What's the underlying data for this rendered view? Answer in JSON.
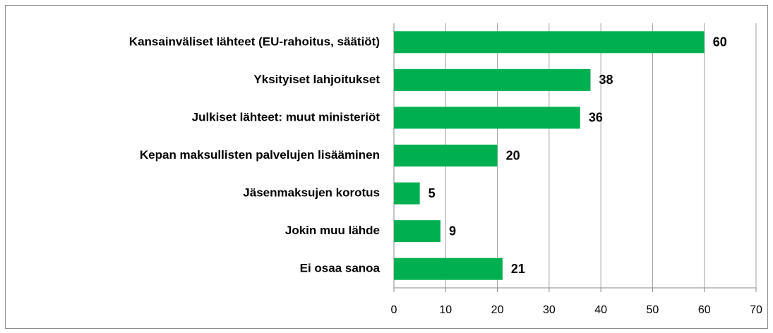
{
  "chart_data": {
    "type": "bar",
    "orientation": "horizontal",
    "categories": [
      "Kansainväliset lähteet (EU-rahoitus, säätiöt)",
      "Yksityiset lahjoitukset",
      "Julkiset lähteet: muut ministeriöt",
      "Kepan maksullisten palvelujen lisääminen",
      "Jäsenmaksujen korotus",
      "Jokin muu lähde",
      "Ei osaa sanoa"
    ],
    "values": [
      60,
      38,
      36,
      20,
      5,
      9,
      21
    ],
    "color": "#00b050",
    "xlim": [
      0,
      70
    ],
    "xticks": [
      0,
      10,
      20,
      30,
      40,
      50,
      60,
      70
    ],
    "grid": true
  }
}
